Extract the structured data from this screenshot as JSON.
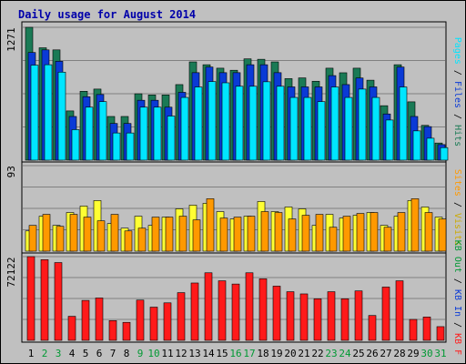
{
  "chart_data": {
    "type": "bar",
    "title": "Daily usage for August 2014",
    "colors": {
      "hits": "#1a7a55",
      "files": "#0a3ad6",
      "pages": "#00e5ff",
      "visits": "#ffff33",
      "sites": "#ff9900",
      "kb": "#ff1a1a",
      "weekend_label": "#009933",
      "weekday_label": "#000000",
      "legend_separator": "#000000",
      "background": "#c0c0c0",
      "title": "#0000aa"
    },
    "x": [
      "1",
      "2",
      "3",
      "4",
      "5",
      "6",
      "7",
      "8",
      "9",
      "10",
      "11",
      "12",
      "13",
      "14",
      "15",
      "16",
      "17",
      "18",
      "19",
      "20",
      "21",
      "22",
      "23",
      "24",
      "25",
      "26",
      "27",
      "28",
      "29",
      "30",
      "31"
    ],
    "weekend_days": [
      "2",
      "3",
      "9",
      "10",
      "16",
      "17",
      "23",
      "24",
      "30",
      "31"
    ],
    "panels": [
      {
        "id": "top",
        "max_label": "1271",
        "ylim": [
          0,
          1271
        ],
        "legend": [
          "Hits",
          "Files",
          "Pages"
        ],
        "series": [
          {
            "name": "Hits",
            "values": [
              1271,
              1075,
              1055,
              471,
              659,
              680,
              418,
              418,
              635,
              624,
              624,
              723,
              940,
              913,
              880,
              860,
              969,
              965,
              940,
              780,
              787,
              755,
              880,
              836,
              880,
              765,
              521,
              913,
              558,
              333,
              164
            ]
          },
          {
            "name": "Files",
            "values": [
              1030,
              1055,
              946,
              418,
              607,
              628,
              351,
              351,
              573,
              573,
              507,
              649,
              837,
              891,
              837,
              837,
              913,
              913,
              837,
              701,
              701,
              701,
              809,
              723,
              786,
              701,
              442,
              891,
              418,
              321,
              149
            ]
          },
          {
            "name": "Pages",
            "values": [
              909,
              913,
              842,
              292,
              507,
              560,
              260,
              260,
              507,
              507,
              422,
              600,
              700,
              752,
              740,
              707,
              707,
              750,
              707,
              600,
              600,
              560,
              700,
              600,
              680,
              600,
              384,
              700,
              280,
              210,
              120
            ]
          }
        ]
      },
      {
        "id": "middle",
        "max_label": "93",
        "ylim": [
          0,
          93
        ],
        "legend": [
          "Visits",
          "Sites"
        ],
        "series": [
          {
            "name": "Visits",
            "values": [
              22,
              38,
              28,
              42,
              49,
              55,
              30,
              25,
              38,
              28,
              37,
              46,
              50,
              52,
              43,
              35,
              38,
              54,
              43,
              48,
              46,
              28,
              40,
              36,
              39,
              42,
              28,
              38,
              55,
              48,
              37
            ]
          },
          {
            "name": "Sites",
            "values": [
              28,
              40,
              27,
              40,
              37,
              33,
              40,
              22,
              25,
              37,
              37,
              38,
              34,
              57,
              36,
              37,
              38,
              43,
              42,
              35,
              39,
              40,
              26,
              38,
              41,
              42,
              26,
              42,
              57,
              42,
              35
            ]
          }
        ]
      },
      {
        "id": "bottom",
        "max_label": "72122",
        "ylim": [
          0,
          72122
        ],
        "legend": [
          "KB F",
          "KB In",
          "KB Out"
        ],
        "series": [
          {
            "name": "KB F",
            "values": [
              72122,
              69500,
              67000,
              20700,
              34400,
              36500,
              17000,
              15500,
              34700,
              28600,
              32300,
              41100,
              49400,
              58200,
              51300,
              48500,
              58200,
              53000,
              46700,
              41900,
              40000,
              35800,
              41900,
              35800,
              42600,
              21400,
              45900,
              51300,
              18000,
              20100,
              11800
            ]
          }
        ]
      }
    ]
  }
}
